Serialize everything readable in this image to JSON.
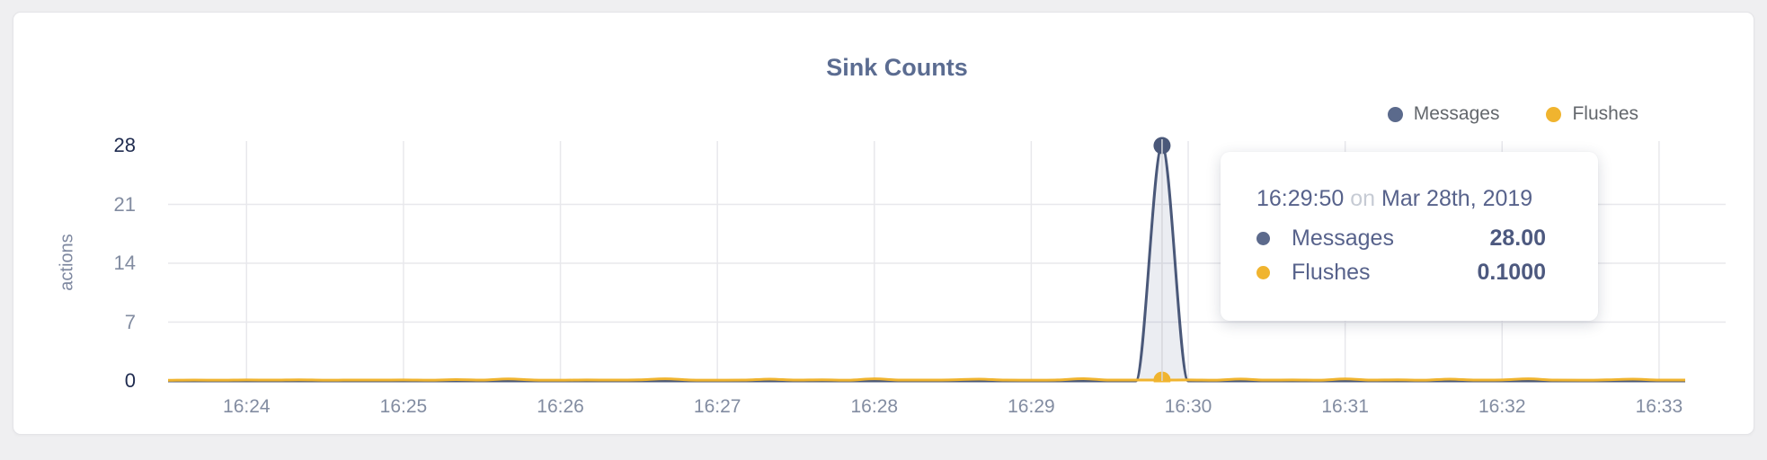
{
  "page": {
    "background": "#efeff1"
  },
  "card": {
    "title": "Sink Counts"
  },
  "legend": [
    {
      "label": "Messages",
      "color": "#5b6a8c"
    },
    {
      "label": "Flushes",
      "color": "#f0b42f"
    }
  ],
  "tooltip": {
    "time": "16:29:50",
    "connector": "on",
    "date": "Mar 28th, 2019",
    "rows": [
      {
        "label": "Messages",
        "value": "28.00",
        "color": "#5c6a8c"
      },
      {
        "label": "Flushes",
        "value": "0.1000",
        "color": "#f0b42f"
      }
    ]
  },
  "chart_data": {
    "type": "area",
    "title": "Sink Counts",
    "xlabel": "",
    "ylabel": "actions",
    "ylim": [
      0,
      28
    ],
    "y_ticks": [
      0,
      7,
      14,
      21,
      28
    ],
    "x_tick_labels": [
      "16:24",
      "16:25",
      "16:26",
      "16:27",
      "16:28",
      "16:29",
      "16:30",
      "16:31",
      "16:32",
      "16:33"
    ],
    "start_time": "16:23:30",
    "end_time": "16:33:10",
    "step_seconds": 10,
    "grid": true,
    "legend_position": "top-right",
    "hover": {
      "time": "16:29:50",
      "date": "Mar 28th, 2019",
      "index": 38
    },
    "colors": {
      "grid": "#e8e8ec",
      "crosshair": "#d6d7dc",
      "axis_text": "#828ca1",
      "axis_text_emphasis": "#202c50"
    },
    "series": [
      {
        "name": "Messages",
        "color": "#4a5879",
        "area_color": "rgba(90,105,145,0.12)",
        "hover_value": "28.00",
        "values": [
          0,
          0,
          0,
          0,
          0,
          0,
          0,
          0,
          0,
          0,
          0,
          0,
          0,
          0,
          0,
          0,
          0,
          0,
          0,
          0,
          0,
          0,
          0,
          0,
          0,
          0,
          0,
          0,
          0,
          0,
          0,
          0,
          0,
          0,
          0,
          0,
          0,
          0,
          28,
          0,
          0,
          0,
          0,
          0,
          0,
          0,
          0,
          0,
          0,
          0,
          0,
          0,
          0,
          0,
          0,
          0,
          0,
          0,
          0
        ]
      },
      {
        "name": "Flushes",
        "color": "#f0b42f",
        "area_color": "rgba(241,181,47,0.10)",
        "hover_value": "0.1000",
        "values": [
          0.08,
          0.11,
          0.09,
          0.12,
          0.1,
          0.14,
          0.09,
          0.11,
          0.1,
          0.12,
          0.09,
          0.16,
          0.1,
          0.24,
          0.11,
          0.09,
          0.12,
          0.1,
          0.13,
          0.26,
          0.11,
          0.09,
          0.1,
          0.22,
          0.1,
          0.13,
          0.09,
          0.25,
          0.11,
          0.1,
          0.14,
          0.22,
          0.1,
          0.09,
          0.12,
          0.27,
          0.1,
          0.11,
          0.1,
          0.12,
          0.09,
          0.23,
          0.1,
          0.12,
          0.09,
          0.24,
          0.1,
          0.13,
          0.09,
          0.22,
          0.1,
          0.12,
          0.25,
          0.1,
          0.09,
          0.13,
          0.21,
          0.1,
          0.11
        ]
      }
    ]
  }
}
